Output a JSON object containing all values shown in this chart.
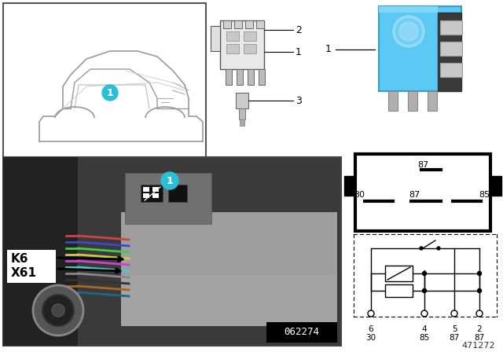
{
  "background_color": "#ffffff",
  "fig_number": "471272",
  "photo_code": "062274",
  "cyan_circle_color": "#29bfd4",
  "car_outline_color": "#aaaaaa",
  "relay_blue": "#5bc8f5",
  "photo_bg": "#4a4a4a",
  "labels_k6_x61": [
    "K6",
    "X61"
  ]
}
